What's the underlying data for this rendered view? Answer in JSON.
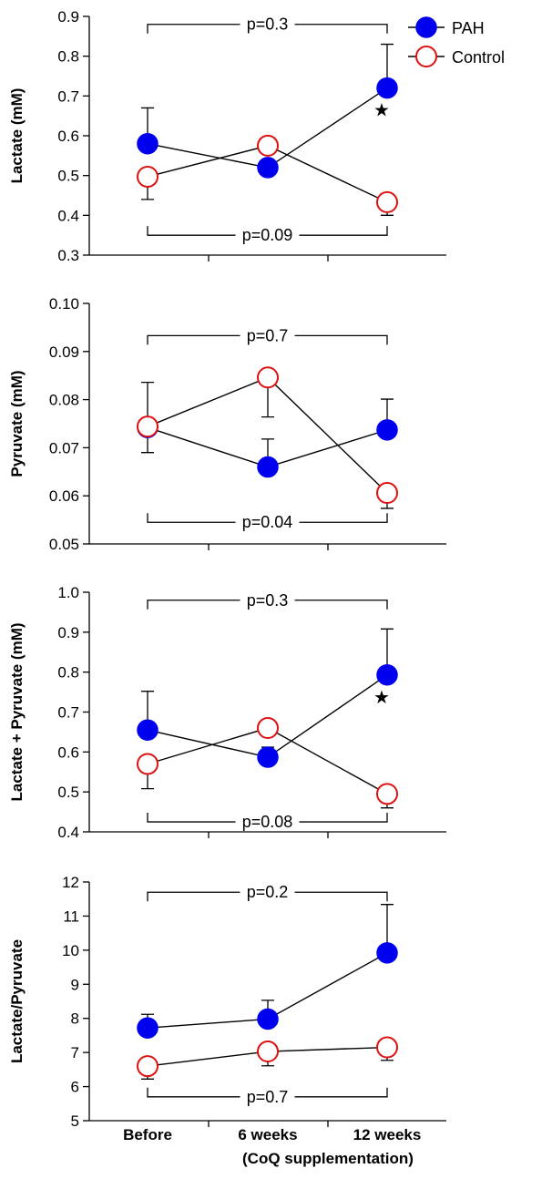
{
  "legend": [
    {
      "name": "PAH",
      "color": "#0000ee",
      "filled": true
    },
    {
      "name": "Control",
      "color": "#dd1111",
      "filled": false
    }
  ],
  "xlabel_note": "(CoQ supplementation)",
  "chart_data": [
    {
      "type": "line",
      "ylabel": "Lactate (mM)",
      "categories": [
        "Before",
        "6 weeks",
        "12 weeks"
      ],
      "ylim": [
        0.3,
        0.9
      ],
      "yticks": [
        "0.3",
        "0.4",
        "0.5",
        "0.6",
        "0.7",
        "0.8",
        "0.9"
      ],
      "series": [
        {
          "name": "PAH",
          "values": [
            0.58,
            0.52,
            0.72
          ],
          "errors": [
            0.09,
            0.0,
            0.11
          ],
          "error_dir": "up"
        },
        {
          "name": "Control",
          "values": [
            0.497,
            0.575,
            0.433
          ],
          "errors": [
            0.057,
            0.0,
            0.033
          ],
          "error_dir": "down"
        }
      ],
      "brackets": [
        {
          "label": "p=0.3",
          "value": 0.88,
          "tips": "down"
        },
        {
          "label": "p=0.09",
          "value": 0.35,
          "tips": "up"
        }
      ],
      "markers": [
        {
          "symbol": "★",
          "category": "12 weeks",
          "value": 0.668
        }
      ]
    },
    {
      "type": "line",
      "ylabel": "Pyruvate (mM)",
      "categories": [
        "Before",
        "6 weeks",
        "12 weeks"
      ],
      "ylim": [
        0.05,
        0.1
      ],
      "yticks": [
        "0.05",
        "0.06",
        "0.07",
        "0.08",
        "0.09",
        "0.10"
      ],
      "series": [
        {
          "name": "PAH",
          "values": [
            0.0742,
            0.066,
            0.0737
          ],
          "errors": [
            0.0094,
            0.0058,
            0.0064
          ],
          "error_dir": "up"
        },
        {
          "name": "Control",
          "values": [
            0.0744,
            0.0846,
            0.0606
          ],
          "errors": [
            0.0054,
            0.0082,
            0.0032
          ],
          "error_dir": "down"
        }
      ],
      "brackets": [
        {
          "label": "p=0.7",
          "value": 0.0933,
          "tips": "down"
        },
        {
          "label": "p=0.04",
          "value": 0.0545,
          "tips": "up"
        }
      ],
      "markers": []
    },
    {
      "type": "line",
      "ylabel": "Lactate + Pyruvate (mM)",
      "categories": [
        "Before",
        "6 weeks",
        "12 weeks"
      ],
      "ylim": [
        0.4,
        1.0
      ],
      "yticks": [
        "0.4",
        "0.5",
        "0.6",
        "0.7",
        "0.8",
        "0.9",
        "1.0"
      ],
      "series": [
        {
          "name": "PAH",
          "values": [
            0.655,
            0.587,
            0.793
          ],
          "errors": [
            0.097,
            0.025,
            0.115
          ],
          "error_dir": "up"
        },
        {
          "name": "Control",
          "values": [
            0.57,
            0.66,
            0.495
          ],
          "errors": [
            0.062,
            0.0,
            0.035
          ],
          "error_dir": "down"
        }
      ],
      "brackets": [
        {
          "label": "p=0.3",
          "value": 0.98,
          "tips": "down"
        },
        {
          "label": "p=0.08",
          "value": 0.425,
          "tips": "up"
        }
      ],
      "markers": [
        {
          "symbol": "★",
          "category": "12 weeks",
          "value": 0.74
        }
      ]
    },
    {
      "type": "line",
      "ylabel": "Lactate/Pyruvate",
      "categories": [
        "Before",
        "6 weeks",
        "12 weeks"
      ],
      "ylim": [
        5,
        12
      ],
      "yticks": [
        "5",
        "6",
        "7",
        "8",
        "9",
        "10",
        "11",
        "12"
      ],
      "series": [
        {
          "name": "PAH",
          "values": [
            7.72,
            7.98,
            9.92
          ],
          "errors": [
            0.4,
            0.55,
            1.42
          ],
          "error_dir": "up"
        },
        {
          "name": "Control",
          "values": [
            6.6,
            7.03,
            7.15
          ],
          "errors": [
            0.38,
            0.42,
            0.38
          ],
          "error_dir": "down"
        }
      ],
      "brackets": [
        {
          "label": "p=0.2",
          "value": 11.7,
          "tips": "down"
        },
        {
          "label": "p=0.7",
          "value": 5.7,
          "tips": "up"
        }
      ],
      "markers": []
    }
  ]
}
